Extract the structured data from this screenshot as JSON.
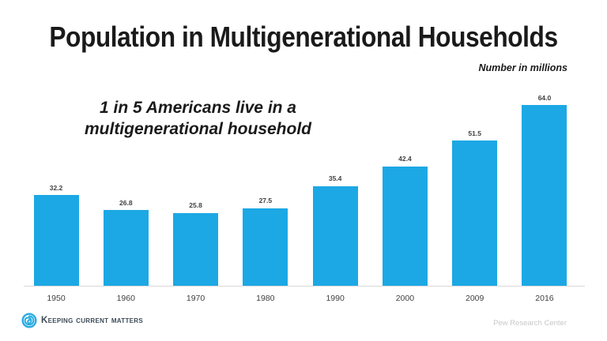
{
  "title": "Population in Multigenerational Households",
  "subtitle": "Number in millions",
  "annotation": {
    "line1": "1 in 5 Americans live in a",
    "line2": "multigenerational household"
  },
  "chart_data": {
    "type": "bar",
    "categories": [
      "1950",
      "1960",
      "1970",
      "1980",
      "1990",
      "2000",
      "2009",
      "2016"
    ],
    "values": [
      32.2,
      26.8,
      25.8,
      27.5,
      35.4,
      42.4,
      51.5,
      64.0
    ],
    "title": "Population in Multigenerational Households",
    "xlabel": "",
    "ylabel": "Number in millions",
    "ylim": [
      0,
      70
    ],
    "grid": false,
    "legend": false,
    "value_label_format": "one decimal place shown above each bar",
    "baseline_axis": "light gray horizontal line under bars"
  },
  "footer": {
    "brand": "Keeping Current Matters",
    "source": "Pew Research Center"
  },
  "colors": {
    "bar": "#1CA8E4",
    "accent": "#29ABE2",
    "title_text": "#1A1A1A",
    "value_label": "#404040",
    "tick_label": "#3F3F3F",
    "axis_line": "#D9D9D9",
    "brand_text": "#3D4A55",
    "source_text": "#C8C8C8",
    "background": "#FFFFFF"
  }
}
